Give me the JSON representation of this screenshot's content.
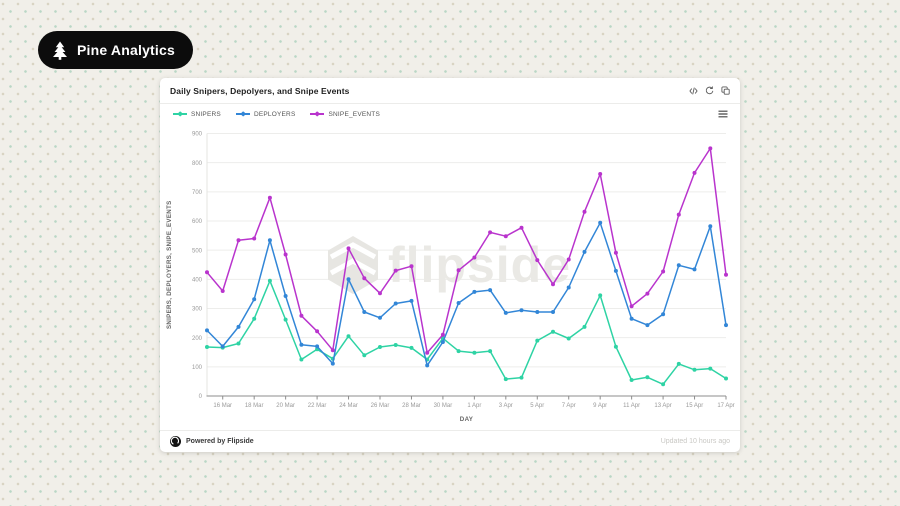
{
  "page": {
    "background_color": "#f1efe9"
  },
  "badge": {
    "label": "Pine Analytics",
    "icon": "pine-tree-icon",
    "background_color": "#0c0c0c",
    "text_color": "#ffffff"
  },
  "card": {
    "title": "Daily Snipers, Depolyers, and Snipe Events",
    "toolbar_icons": [
      "code-icon",
      "refresh-icon",
      "copy-icon"
    ],
    "legend_menu_icon": "hamburger-icon",
    "footer": {
      "logo_icon": "flipside-logo-icon",
      "powered_by": "Powered by Flipside",
      "updated": "Updated 10 hours ago"
    }
  },
  "watermark": {
    "text": "flipside",
    "logo_icon": "flipside-cube-icon"
  },
  "chart_data": {
    "type": "line",
    "title": "Daily Snipers, Depolyers, and Snipe Events",
    "xlabel": "DAY",
    "ylabel": "SNIPERS, DEPLOYERS, SNIPE_EVENTS",
    "ylim": [
      0,
      900
    ],
    "ytick_step": 100,
    "y_ticks": [
      0,
      100,
      200,
      300,
      400,
      500,
      600,
      700,
      800,
      900
    ],
    "grid": true,
    "legend_position": "top-left",
    "categories": [
      "15 Mar",
      "16 Mar",
      "17 Mar",
      "18 Mar",
      "19 Mar",
      "20 Mar",
      "21 Mar",
      "22 Mar",
      "23 Mar",
      "24 Mar",
      "25 Mar",
      "26 Mar",
      "27 Mar",
      "28 Mar",
      "29 Mar",
      "30 Mar",
      "31 Mar",
      "1 Apr",
      "2 Apr",
      "3 Apr",
      "4 Apr",
      "5 Apr",
      "6 Apr",
      "7 Apr",
      "8 Apr",
      "9 Apr",
      "10 Apr",
      "11 Apr",
      "12 Apr",
      "13 Apr",
      "14 Apr",
      "15 Apr",
      "16 Apr",
      "17 Apr"
    ],
    "x_tick_labels": [
      "16 Mar",
      "18 Mar",
      "20 Mar",
      "22 Mar",
      "24 Mar",
      "26 Mar",
      "28 Mar",
      "30 Mar",
      "1 Apr",
      "3 Apr",
      "5 Apr",
      "7 Apr",
      "9 Apr",
      "11 Apr",
      "13 Apr",
      "15 Apr",
      "17 Apr"
    ],
    "series": [
      {
        "name": "SNIPERS",
        "color": "#2ed3a4",
        "values": [
          168,
          166,
          180,
          265,
          395,
          262,
          125,
          160,
          128,
          205,
          140,
          168,
          175,
          165,
          125,
          198,
          154,
          148,
          154,
          58,
          63,
          190,
          220,
          197,
          237,
          345,
          169,
          55,
          64,
          40,
          110,
          90,
          94,
          60
        ]
      },
      {
        "name": "DEPLOYERS",
        "color": "#3286d7",
        "values": [
          225,
          170,
          237,
          332,
          534,
          343,
          176,
          170,
          111,
          400,
          288,
          268,
          317,
          326,
          105,
          185,
          319,
          357,
          363,
          285,
          294,
          288,
          288,
          372,
          494,
          594,
          429,
          265,
          243,
          280,
          448,
          434,
          582,
          243
        ]
      },
      {
        "name": "SNIPE_EVENTS",
        "color": "#b934cd",
        "values": [
          424,
          360,
          534,
          540,
          680,
          485,
          275,
          222,
          157,
          506,
          404,
          352,
          430,
          445,
          148,
          210,
          431,
          475,
          561,
          548,
          577,
          466,
          383,
          468,
          632,
          761,
          491,
          308,
          351,
          427,
          622,
          765,
          849,
          416
        ]
      }
    ]
  }
}
